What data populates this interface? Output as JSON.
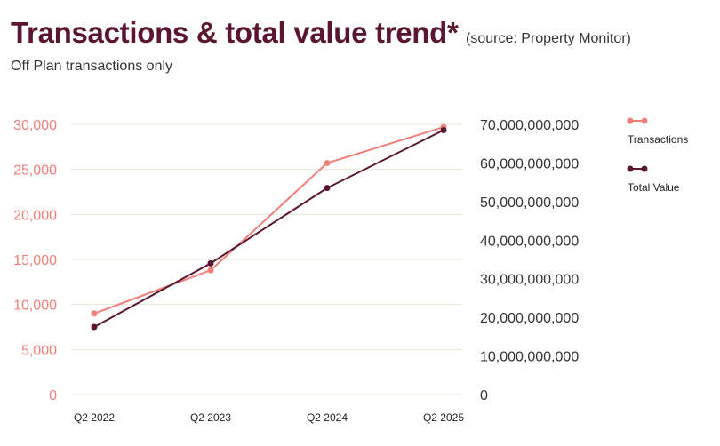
{
  "header": {
    "title": "Transactions & total value trend*",
    "source": "(source: Property Monitor)",
    "subtitle": "Off Plan transactions only"
  },
  "colors": {
    "transactions": "#f07f7a",
    "total_value": "#5a1631",
    "grid": "#e4e4d8",
    "left_axis_text": "#f07f7a",
    "right_axis_text": "#333333"
  },
  "chart_data": {
    "type": "line",
    "categories": [
      "Q2 2022",
      "Q2 2023",
      "Q2 2024",
      "Q2 2025"
    ],
    "series": [
      {
        "name": "Transactions",
        "axis": "left",
        "values": [
          9000,
          13800,
          25700,
          29700
        ]
      },
      {
        "name": "Total Value",
        "axis": "right",
        "values": [
          17500000000,
          34000000000,
          53500000000,
          68500000000
        ]
      }
    ],
    "y_left": {
      "ylim": [
        0,
        30000
      ],
      "ticks": [
        "0",
        "5,000",
        "10,000",
        "15,000",
        "20,000",
        "25,000",
        "30,000"
      ]
    },
    "y_right": {
      "ylim": [
        0,
        70000000000
      ],
      "ticks": [
        "0",
        "10,000,000,000",
        "20,000,000,000",
        "30,000,000,000",
        "40,000,000,000",
        "50,000,000,000",
        "60,000,000,000",
        "70,000,000,000"
      ]
    },
    "grid": true,
    "legend_position": "right"
  }
}
